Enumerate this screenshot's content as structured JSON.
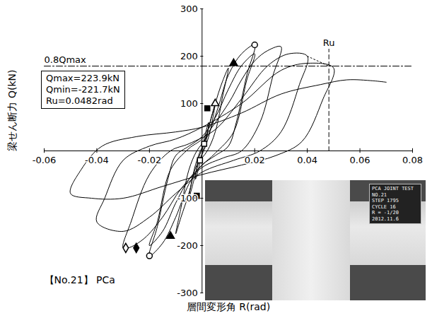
{
  "chart_data": {
    "type": "line",
    "title": "【No.21】 PCa",
    "x_label": "層間変形角 R(rad)",
    "y_label": "梁せん断力 Q(kN)",
    "xlim": [
      -0.06,
      0.08
    ],
    "xticks": [
      -0.06,
      -0.04,
      -0.02,
      0.02,
      0.04,
      0.06,
      0.08
    ],
    "ylim": [
      -300,
      300
    ],
    "yticks": [
      -300,
      -200,
      -100,
      100,
      200,
      300
    ],
    "grid": false,
    "series": [
      {
        "color": "#000000",
        "line_style": "solid",
        "x": [
          0,
          0.001,
          0.0025,
          0.0015,
          0,
          -0.001,
          -0.0025,
          -0.0015,
          0,
          0.002,
          0.004,
          0.005,
          0.003,
          0.001,
          -0.001,
          -0.003,
          -0.005,
          -0.003,
          -0.001,
          0.001,
          0.004,
          0.007,
          0.01,
          0.008,
          0.005,
          0.002,
          -0.002,
          -0.005,
          -0.008,
          -0.01,
          -0.008,
          -0.005,
          -0.002,
          0.002,
          0.006,
          0.01,
          0.015,
          0.02,
          0.017,
          0.013,
          0.01,
          0.005,
          0,
          -0.005,
          -0.01,
          -0.015,
          -0.02,
          -0.017,
          -0.013,
          -0.01,
          -0.005,
          0,
          0.005,
          0.01,
          0.015,
          0.02,
          0.017,
          0.012,
          0.005,
          0,
          -0.005,
          -0.01,
          -0.015,
          -0.02,
          -0.017,
          -0.012,
          -0.005,
          0,
          0.01,
          0.015,
          0.02,
          0.025,
          0.03,
          0.027,
          0.022,
          0.015,
          0.008,
          0,
          -0.008,
          -0.015,
          -0.022,
          -0.028,
          -0.03,
          -0.027,
          -0.02,
          -0.012,
          -0.005,
          0.005,
          0.015,
          0.025,
          0.033,
          0.04,
          0.037,
          0.03,
          0.022,
          0.012,
          0,
          -0.01,
          -0.02,
          -0.03,
          -0.04,
          -0.037,
          -0.03,
          -0.02,
          -0.01,
          0,
          0.015,
          0.03,
          0.04,
          0.05,
          0.046,
          0.038,
          0.028,
          0.015,
          0,
          -0.015,
          -0.03,
          -0.042,
          -0.05,
          -0.046,
          -0.038,
          -0.025,
          -0.01,
          0,
          0.015,
          0.03,
          0.045,
          0.055,
          0.065,
          0.07
        ],
        "values": [
          0,
          30,
          60,
          20,
          -5,
          -30,
          -60,
          -20,
          5,
          40,
          80,
          100,
          40,
          5,
          -20,
          -60,
          -100,
          -40,
          -5,
          20,
          80,
          135,
          175,
          120,
          40,
          0,
          -30,
          -90,
          -140,
          -175,
          -120,
          -40,
          0,
          30,
          90,
          160,
          205,
          223.9,
          160,
          60,
          10,
          -10,
          -30,
          -70,
          -140,
          -195,
          -221.7,
          -160,
          -60,
          -10,
          10,
          30,
          70,
          130,
          180,
          205,
          150,
          40,
          -5,
          -30,
          -60,
          -110,
          -170,
          -200,
          -150,
          -40,
          5,
          25,
          100,
          150,
          190,
          212,
          220,
          160,
          60,
          0,
          -15,
          -35,
          -80,
          -140,
          -185,
          -205,
          -205,
          -150,
          -50,
          0,
          15,
          45,
          110,
          180,
          205,
          200,
          140,
          40,
          0,
          -20,
          -45,
          -90,
          -140,
          -170,
          -150,
          -100,
          -20,
          10,
          25,
          50,
          100,
          170,
          185,
          175,
          110,
          20,
          -10,
          -30,
          -50,
          -75,
          -100,
          -100,
          -90,
          -40,
          10,
          30,
          40,
          50,
          80,
          120,
          140,
          150,
          148,
          145
        ]
      }
    ],
    "markers": [
      {
        "marker": "circle",
        "color": "#ffffff",
        "x": [
          0.02,
          -0.02
        ],
        "values": [
          223.9,
          -221.7
        ]
      },
      {
        "marker": "diamond",
        "color": "#000000",
        "x": [
          -0.025
        ],
        "values": [
          -205
        ]
      },
      {
        "marker": "diamond",
        "color": "#ffffff",
        "x": [
          -0.029
        ],
        "values": [
          -205
        ]
      },
      {
        "marker": "triangle",
        "color": "#000000",
        "x": [
          0.012,
          -0.012
        ],
        "values": [
          185,
          -180
        ]
      },
      {
        "marker": "triangle",
        "color": "#ffffff",
        "x": [
          0.005,
          -0.005
        ],
        "values": [
          100,
          -100
        ]
      },
      {
        "marker": "square",
        "color": "#000000",
        "x": [
          0.002,
          -0.002
        ],
        "values": [
          90,
          -95
        ]
      },
      {
        "marker": "square",
        "color": "#ffffff",
        "x": [
          0.0008,
          -0.0008
        ],
        "values": [
          15,
          -20
        ]
      }
    ],
    "annotations": {
      "stats_box": [
        "Qmax=223.9kN",
        "Qmin=-221.7kN",
        "Ru=0.0482rad"
      ],
      "lines": [
        {
          "label": "0.8Qmax",
          "line_style": "dashdot",
          "color": "#000000",
          "x": [
            -0.06,
            0.08
          ],
          "values": [
            179.1,
            179.1
          ]
        },
        {
          "label": "Ru",
          "line_style": "dashed",
          "color": "#000000",
          "x": [
            0.0482,
            0.0482
          ],
          "values": [
            0,
            215
          ]
        },
        {
          "line_style": "dotted",
          "color": "#000000",
          "x": [
            0.04,
            0.0482
          ],
          "values": [
            200,
            179.1
          ]
        }
      ]
    },
    "photo": {
      "sign": [
        "PCA JOINT TEST",
        "NO.21",
        "STEP 1795",
        "CYCLE 16",
        "R = -1/20",
        "2012.11.6"
      ]
    }
  }
}
